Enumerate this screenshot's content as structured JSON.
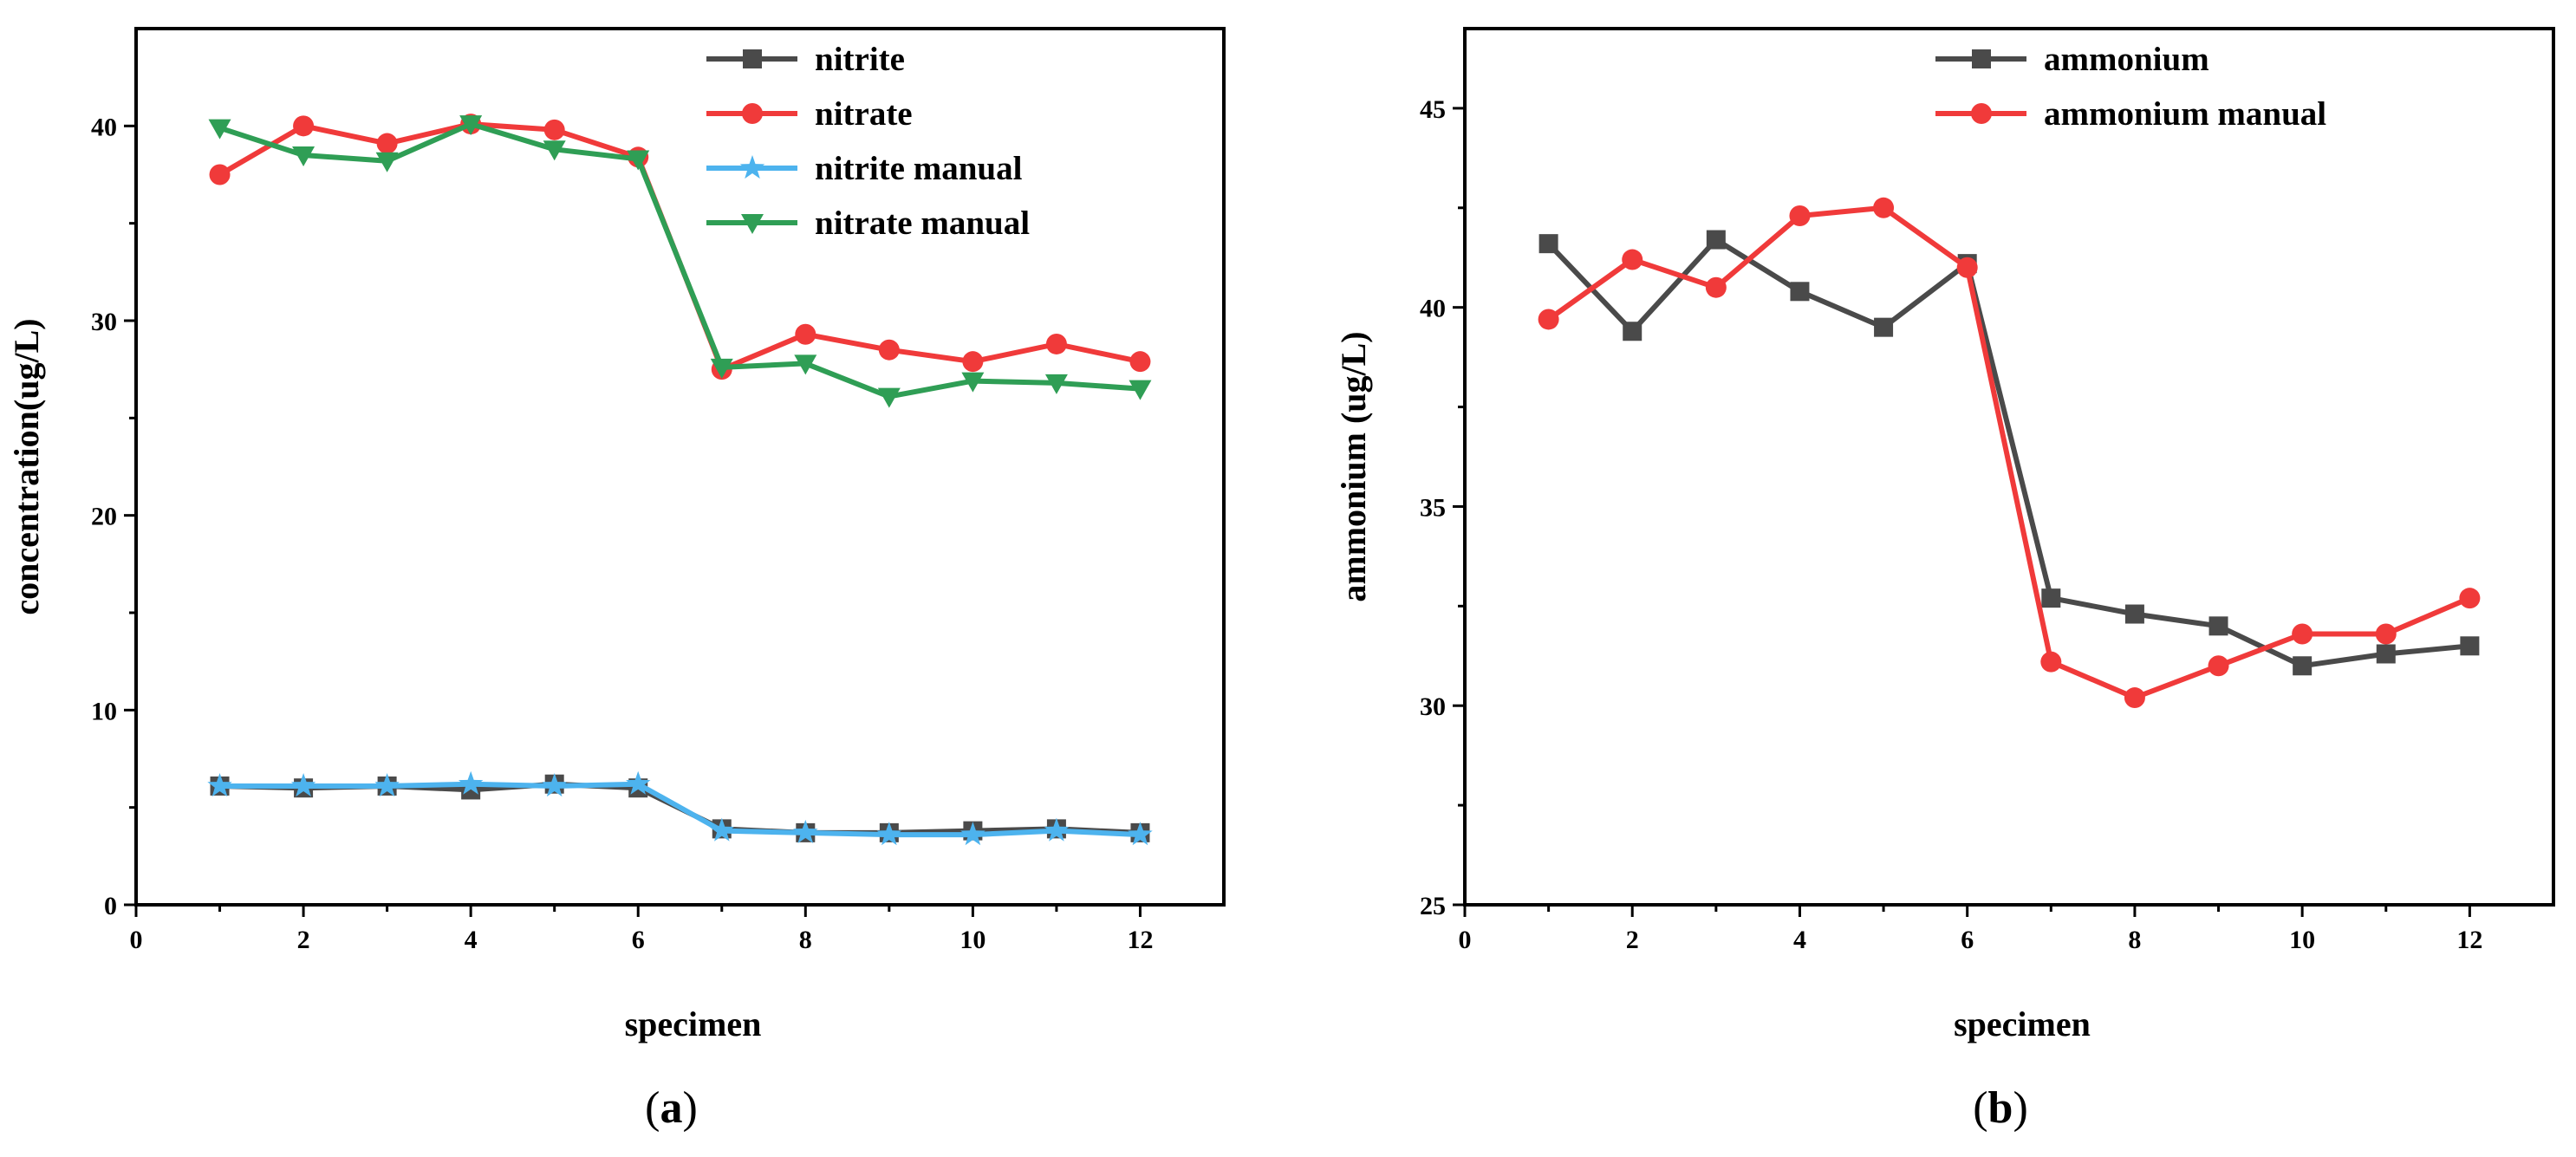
{
  "chart_data": [
    {
      "type": "line",
      "caption": "a",
      "title": "",
      "xlabel": "specimen",
      "ylabel": "concentration(ug/L)",
      "xlim": [
        0,
        13
      ],
      "ylim": [
        0,
        45
      ],
      "xticks": [
        "0",
        "2",
        "4",
        "6",
        "8",
        "10",
        "12"
      ],
      "yticks": [
        "0",
        "10",
        "20",
        "30",
        "40"
      ],
      "xtick_values": [
        0,
        2,
        4,
        6,
        8,
        10,
        12
      ],
      "ytick_values": [
        0,
        10,
        20,
        30,
        40
      ],
      "legend_position": "top-right",
      "x": [
        1,
        2,
        3,
        4,
        5,
        6,
        7,
        8,
        9,
        10,
        11,
        12
      ],
      "series": [
        {
          "name": "nitrite",
          "color": "#4a4a4a",
          "marker": "square",
          "values": [
            6.1,
            6.0,
            6.1,
            5.9,
            6.2,
            6.0,
            3.9,
            3.7,
            3.7,
            3.8,
            3.9,
            3.7
          ]
        },
        {
          "name": "nitrate",
          "color": "#f03a3a",
          "marker": "circle",
          "values": [
            37.5,
            40.0,
            39.1,
            40.1,
            39.8,
            38.4,
            27.5,
            29.3,
            28.5,
            27.9,
            28.8,
            27.9
          ]
        },
        {
          "name": "nitrite manual",
          "color": "#4db3ee",
          "marker": "star",
          "values": [
            6.1,
            6.1,
            6.1,
            6.2,
            6.1,
            6.2,
            3.8,
            3.7,
            3.6,
            3.6,
            3.8,
            3.6
          ]
        },
        {
          "name": "nitrate manual",
          "color": "#2f9e55",
          "marker": "triangle-down",
          "values": [
            39.9,
            38.5,
            38.2,
            40.1,
            38.8,
            38.3,
            27.6,
            27.8,
            26.1,
            26.9,
            26.8,
            26.5
          ]
        }
      ]
    },
    {
      "type": "line",
      "caption": "b",
      "title": "",
      "xlabel": "specimen",
      "ylabel": "ammonium (ug/L)",
      "xlim": [
        0,
        13
      ],
      "ylim": [
        25,
        47
      ],
      "xticks": [
        "0",
        "2",
        "4",
        "6",
        "8",
        "10",
        "12"
      ],
      "yticks": [
        "25",
        "30",
        "35",
        "40",
        "45"
      ],
      "xtick_values": [
        0,
        2,
        4,
        6,
        8,
        10,
        12
      ],
      "ytick_values": [
        25,
        30,
        35,
        40,
        45
      ],
      "legend_position": "top-right",
      "x": [
        1,
        2,
        3,
        4,
        5,
        6,
        7,
        8,
        9,
        10,
        11,
        12
      ],
      "series": [
        {
          "name": "ammonium",
          "color": "#4a4a4a",
          "marker": "square",
          "values": [
            41.6,
            39.4,
            41.7,
            40.4,
            39.5,
            41.1,
            32.7,
            32.3,
            32.0,
            31.0,
            31.3,
            31.5
          ]
        },
        {
          "name": "ammonium manual",
          "color": "#f03a3a",
          "marker": "circle",
          "values": [
            39.7,
            41.2,
            40.5,
            42.3,
            42.5,
            41.0,
            31.1,
            30.2,
            31.0,
            31.8,
            31.8,
            32.7
          ]
        }
      ]
    }
  ]
}
